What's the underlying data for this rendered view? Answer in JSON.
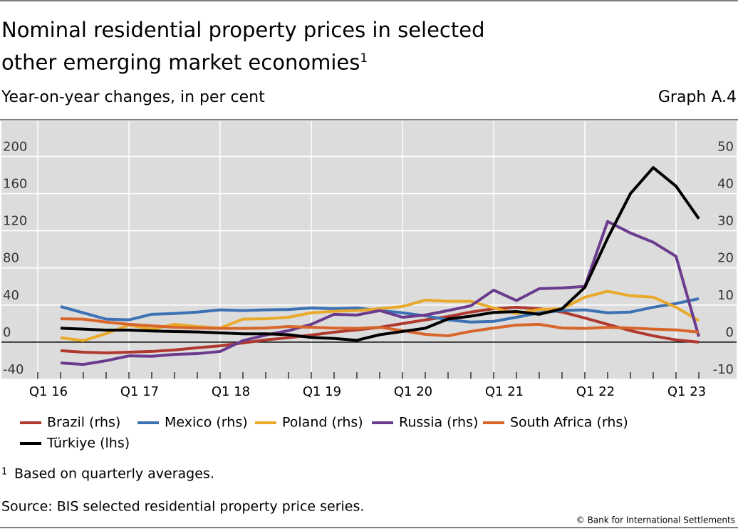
{
  "chart_data": {
    "type": "line",
    "title": "Nominal residential property prices in selected other emerging market economies",
    "title_note": "1",
    "subtitle": "Year-on-year changes, in per cent",
    "graph_label": "Graph A.4",
    "footnote_marker": "1",
    "footnote": "Based on quarterly averages.",
    "source": "Source: BIS selected residential property price series.",
    "copyright": "© Bank for International Settlements",
    "categories": [
      "Q1 16",
      null,
      null,
      null,
      "Q1 17",
      null,
      null,
      null,
      "Q1 18",
      null,
      null,
      null,
      "Q1 19",
      null,
      null,
      null,
      "Q1 20",
      null,
      null,
      null,
      "Q1 21",
      null,
      null,
      null,
      "Q1 22",
      null,
      null,
      null,
      "Q1 23",
      null
    ],
    "ylim": [
      -40,
      238
    ],
    "yticks": [
      -40,
      0,
      40,
      80,
      120,
      160,
      200
    ],
    "y2lim": [
      -10,
      59.5
    ],
    "y2ticks": [
      -10,
      0,
      10,
      20,
      30,
      40,
      50
    ],
    "grid": true,
    "series": [
      {
        "name": "Brazil (rhs)",
        "color": "#b0392f",
        "axis": "y2",
        "values": [
          null,
          -2.3,
          -2.7,
          -2.9,
          -2.7,
          -2.5,
          -2.1,
          -1.5,
          -1.0,
          -0.2,
          0.6,
          1.2,
          1.9,
          2.7,
          3.3,
          4.0,
          5.0,
          6.0,
          6.9,
          8.1,
          9.0,
          9.4,
          9.0,
          8.1,
          6.5,
          4.8,
          3.1,
          1.7,
          0.6,
          0
        ]
      },
      {
        "name": "Mexico (rhs)",
        "color": "#3c72b4",
        "axis": "y2",
        "values": [
          null,
          9.6,
          7.9,
          6.2,
          6.0,
          7.5,
          7.7,
          8.1,
          8.7,
          8.5,
          8.7,
          8.8,
          9.2,
          9.0,
          9.2,
          8.5,
          7.9,
          7.1,
          6.0,
          5.4,
          5.6,
          6.7,
          7.9,
          8.5,
          8.7,
          7.9,
          8.1,
          9.4,
          10.4,
          11.7
        ]
      },
      {
        "name": "Poland (rhs)",
        "color": "#e9a92b",
        "axis": "y2",
        "values": [
          null,
          1.2,
          0.4,
          2.3,
          4.6,
          3.5,
          4.8,
          4.2,
          3.8,
          6.2,
          6.3,
          6.7,
          7.9,
          8.3,
          8.5,
          9.0,
          9.6,
          11.3,
          11.0,
          11.0,
          9.2,
          7.7,
          8.8,
          9.0,
          12.1,
          13.7,
          12.5,
          12.1,
          9.4,
          5.8
        ]
      },
      {
        "name": "Russia (rhs)",
        "color": "#6b3b8e",
        "axis": "y2",
        "values": [
          null,
          -5.6,
          -6.0,
          -5.0,
          -3.7,
          -3.8,
          -3.3,
          -3.1,
          -2.5,
          0.4,
          1.9,
          3.1,
          4.8,
          7.5,
          7.3,
          8.5,
          6.7,
          7.3,
          8.5,
          9.8,
          14.0,
          11.2,
          14.4,
          14.6,
          15.0,
          32.5,
          29.4,
          26.9,
          23.1,
          1.5
        ]
      },
      {
        "name": "South Africa (rhs)",
        "color": "#d8662b",
        "axis": "y2",
        "values": [
          null,
          6.3,
          6.2,
          5.4,
          4.8,
          4.4,
          4.0,
          3.8,
          3.7,
          3.7,
          3.8,
          4.2,
          4.0,
          3.8,
          3.7,
          4.0,
          3.1,
          2.1,
          1.7,
          2.9,
          3.8,
          4.6,
          4.8,
          3.8,
          3.7,
          4.0,
          3.8,
          3.5,
          3.3,
          2.7
        ]
      },
      {
        "name": "Türkiye (lhs)",
        "color": "#000000",
        "values": [
          null,
          15,
          14,
          13,
          13,
          12,
          11.5,
          11,
          10,
          9,
          9,
          8,
          5,
          4,
          2,
          8,
          11.5,
          15,
          25,
          28,
          32,
          33,
          30,
          36,
          59,
          112,
          160,
          188,
          168,
          133
        ]
      }
    ]
  }
}
